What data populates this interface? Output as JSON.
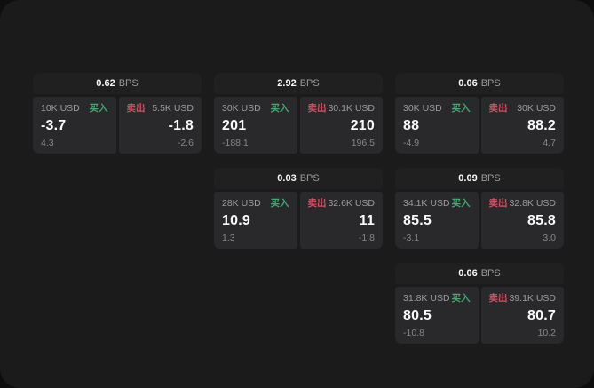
{
  "labels": {
    "bps_unit": "BPS",
    "buy": "买入",
    "sell": "卖出"
  },
  "colors": {
    "outer": "#0e0e0f",
    "surface": "#1b1b1c",
    "card_header": "#202021",
    "panel": "#29292b",
    "text_primary": "#fafafa",
    "text_secondary": "#9c9c9f",
    "text_muted": "#87878a",
    "buy_green": "#3fab6e",
    "sell_red": "#d25164"
  },
  "cards": [
    {
      "bps": "0.62",
      "buy": {
        "amount": "10K USD",
        "price": "-3.7",
        "change": "4.3"
      },
      "sell": {
        "amount": "5.5K USD",
        "price": "-1.8",
        "change": "-2.6"
      }
    },
    {
      "bps": "2.92",
      "buy": {
        "amount": "30K USD",
        "price": "201",
        "change": "-188.1"
      },
      "sell": {
        "amount": "30.1K USD",
        "price": "210",
        "change": "196.5"
      }
    },
    {
      "bps": "0.06",
      "buy": {
        "amount": "30K USD",
        "price": "88",
        "change": "-4.9"
      },
      "sell": {
        "amount": "30K USD",
        "price": "88.2",
        "change": "4.7"
      }
    },
    {
      "bps": "0.03",
      "buy": {
        "amount": "28K USD",
        "price": "10.9",
        "change": "1.3"
      },
      "sell": {
        "amount": "32.6K USD",
        "price": "11",
        "change": "-1.8"
      }
    },
    {
      "bps": "0.09",
      "buy": {
        "amount": "34.1K USD",
        "price": "85.5",
        "change": "-3.1"
      },
      "sell": {
        "amount": "32.8K USD",
        "price": "85.8",
        "change": "3.0"
      }
    },
    {
      "bps": "0.06",
      "buy": {
        "amount": "31.8K USD",
        "price": "80.5",
        "change": "-10.8"
      },
      "sell": {
        "amount": "39.1K USD",
        "price": "80.7",
        "change": "10.2"
      }
    }
  ]
}
